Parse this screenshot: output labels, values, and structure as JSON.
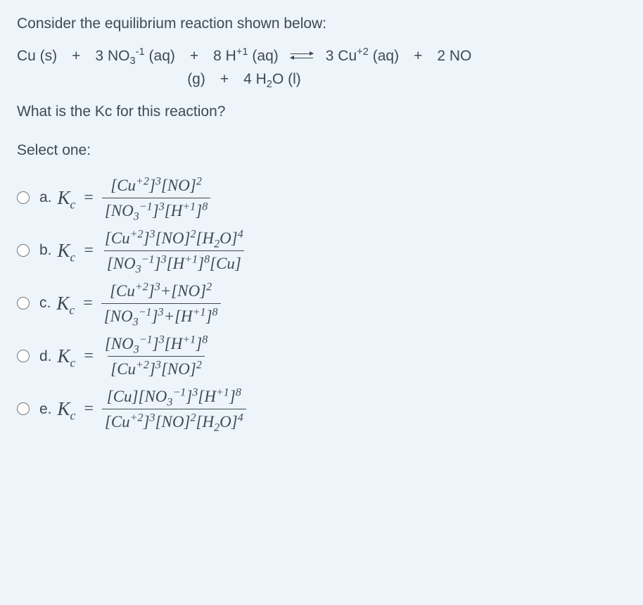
{
  "prompt": "Consider the equilibrium reaction shown below:",
  "reaction": {
    "line1_left": "Cu (s) + 3 NO",
    "no3_sub": "3",
    "no3_sup": "-1",
    "line1_no3_tail": " (aq) + 8 H",
    "h_sup": "+1",
    "line1_h_tail": " (aq)",
    "line1_right_lead": "3 Cu",
    "cu_sup": "+2",
    "line1_right_tail": " (aq) + 2 NO",
    "line2": "(g) + 4 H",
    "h2o_sub": "2",
    "line2_tail": "O (l)"
  },
  "question": "What is the Kc for this reaction?",
  "select_one": "Select one:",
  "options": [
    {
      "label": "a.",
      "num": "[Cu^{+2}]^{3}[NO]^{2}",
      "den": "[NO_{3}^{-1}]^{3}[H^{+1}]^{8}"
    },
    {
      "label": "b.",
      "num": "[Cu^{+2}]^{3}[NO]^{2}[H_{2}O]^{4}",
      "den": "[NO_{3}^{-1}]^{3}[H^{+1}]^{8}[Cu]"
    },
    {
      "label": "c.",
      "num": "[Cu^{+2}]^{3}+[NO]^{2}",
      "den": "[NO_{3}^{-1}]^{3}+[H^{+1}]^{8}"
    },
    {
      "label": "d.",
      "num": "[NO_{3}^{-1}]^{3}[H^{+1}]^{8}",
      "den": "[Cu^{+2}]^{3}[NO]^{2}"
    },
    {
      "label": "e.",
      "num": "[Cu][NO_{3}^{-1}]^{3}[H^{+1}]^{8}",
      "den": "[Cu^{+2}]^{3}[NO]^{2}[H_{2}O]^{4}"
    }
  ],
  "kc_text": "K",
  "kc_sub": "c",
  "eq_sign": "="
}
